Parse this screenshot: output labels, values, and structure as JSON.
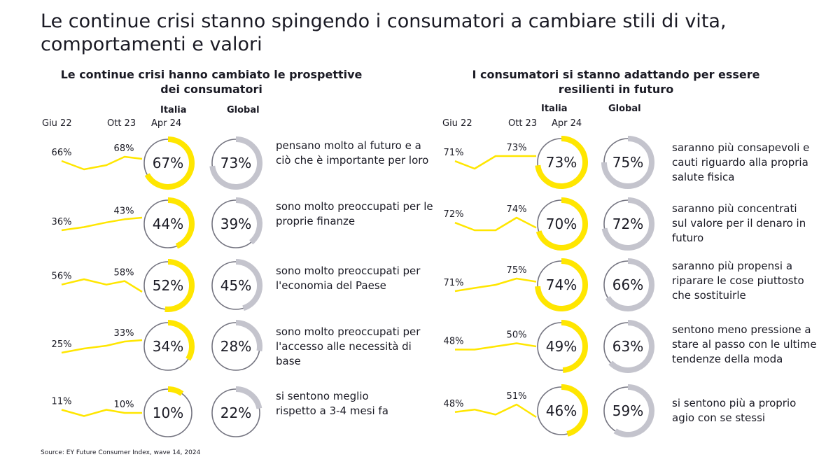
{
  "title": "Le continue crisi stanno spingendo i consumatori a cambiare stili di vita, comportamenti e valori",
  "source": "Source: EY Future Consumer Index, wave 14, 2024",
  "colors": {
    "italia": "#ffe600",
    "global": "#c4c4cd",
    "ring_base": "#747480",
    "trend": "#ffe600",
    "text": "#1a1a24"
  },
  "chart_data": [
    {
      "type": "line+donut",
      "title": "Le continue crisi hanno cambiato le prospettive dei consumatori",
      "headers": {
        "giu22": "Giu 22",
        "ott23": "Ott 23",
        "italia": "Italia",
        "apr24": "Apr 24",
        "global": "Global"
      },
      "rows": [
        {
          "desc": "pensano molto al futuro e a ciò che è importante per loro",
          "trend": [
            66,
            62,
            64,
            68,
            67
          ],
          "giu22_label": "66%",
          "ott23_label": "68%",
          "italia": 67,
          "italia_label": "67%",
          "global": 73,
          "global_label": "73%"
        },
        {
          "desc": "sono molto preoccupati per le proprie finanze",
          "trend": [
            36,
            38,
            41,
            43,
            44
          ],
          "giu22_label": "36%",
          "ott23_label": "43%",
          "italia": 44,
          "italia_label": "44%",
          "global": 39,
          "global_label": "39%"
        },
        {
          "desc": "sono molto preoccupati per l'economia del Paese",
          "trend": [
            56,
            59,
            56,
            58,
            52
          ],
          "giu22_label": "56%",
          "ott23_label": "58%",
          "italia": 52,
          "italia_label": "52%",
          "global": 45,
          "global_label": "45%"
        },
        {
          "desc": "sono molto preoccupati per l'accesso alle necessità di base",
          "trend": [
            25,
            28,
            30,
            33,
            34
          ],
          "giu22_label": "25%",
          "ott23_label": "33%",
          "italia": 34,
          "italia_label": "34%",
          "global": 28,
          "global_label": "28%"
        },
        {
          "desc": "si sentono meglio rispetto a 3-4 mesi fa",
          "trend": [
            11,
            9,
            11,
            10,
            10
          ],
          "giu22_label": "11%",
          "ott23_label": "10%",
          "italia": 10,
          "italia_label": "10%",
          "global": 22,
          "global_label": "22%"
        }
      ]
    },
    {
      "type": "line+donut",
      "title": "I consumatori si stanno adattando per essere resilienti in futuro",
      "headers": {
        "giu22": "Giu 22",
        "ott23": "Ott 23",
        "italia": "Italia",
        "apr24": "Apr 24",
        "global": "Global"
      },
      "rows": [
        {
          "desc": "saranno più consapevoli e cauti riguardo alla propria salute fisica",
          "trend": [
            71,
            68,
            73,
            73,
            73
          ],
          "giu22_label": "71%",
          "ott23_label": "73%",
          "italia": 73,
          "italia_label": "73%",
          "global": 75,
          "global_label": "75%"
        },
        {
          "desc": "saranno più concentrati sul valore per il denaro in futuro",
          "trend": [
            72,
            69,
            69,
            74,
            70
          ],
          "giu22_label": "72%",
          "ott23_label": "74%",
          "italia": 70,
          "italia_label": "70%",
          "global": 72,
          "global_label": "72%"
        },
        {
          "desc": "saranno più propensi a riparare le cose piuttosto che sostituirle",
          "trend": [
            71,
            72,
            73,
            75,
            74
          ],
          "giu22_label": "71%",
          "ott23_label": "75%",
          "italia": 74,
          "italia_label": "74%",
          "global": 66,
          "global_label": "66%"
        },
        {
          "desc": "sentono meno pressione a stare al passo con le ultime tendenze della moda",
          "trend": [
            48,
            48,
            49,
            50,
            49
          ],
          "giu22_label": "48%",
          "ott23_label": "50%",
          "italia": 49,
          "italia_label": "49%",
          "global": 63,
          "global_label": "63%"
        },
        {
          "desc": "si sentono più a proprio agio con se stessi",
          "trend": [
            48,
            49,
            47,
            51,
            46
          ],
          "giu22_label": "48%",
          "ott23_label": "51%",
          "italia": 46,
          "italia_label": "46%",
          "global": 59,
          "global_label": "59%"
        }
      ]
    }
  ]
}
